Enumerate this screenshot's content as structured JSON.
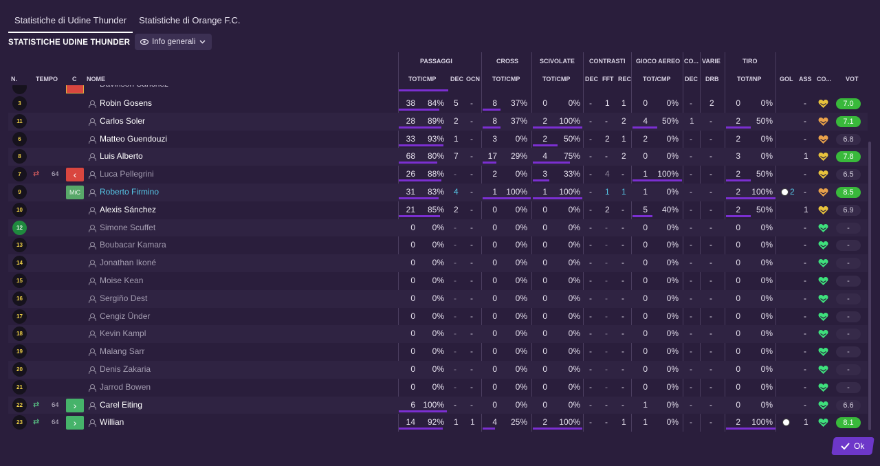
{
  "tabs": [
    {
      "label": "Statistiche di Udine Thunder"
    },
    {
      "label": "Statistiche di Orange F.C."
    }
  ],
  "team_title": "STATISTICHE UDINE THUNDER",
  "view_dropdown": "Info generali",
  "groups": {
    "passaggi": "PASSAGGI",
    "cross": "CROSS",
    "scivolate": "SCIVOLATE",
    "contrasti": "CONTRASTI",
    "gioco_aereo": "GIOCO AEREO",
    "co": "CO...",
    "varie": "VARIE",
    "tiro": "TIRO"
  },
  "columns": {
    "n": "N.",
    "tempo": "TEMPO",
    "c": "C",
    "nome": "NOME",
    "pass_tot": "TOT/CMP",
    "pass_dec": "DEC",
    "pass_ocn": "OCN",
    "cross_tot": "TOT/CMP",
    "sciv_tot": "TOT/CMP",
    "con_dec": "DEC",
    "con_fft": "FFT",
    "con_rec": "REC",
    "aereo_tot": "TOT/CMP",
    "co_dec": "DEC",
    "var_drb": "DRB",
    "tiro_tot": "TOT/INP",
    "gol": "GOL",
    "ass": "ASS",
    "co": "CO...",
    "vot": "VOT"
  },
  "partial_row": {
    "name": "Davinson Sánchez"
  },
  "players": [
    {
      "num": "3",
      "name": "Robin Gosens",
      "min": "",
      "pos": "",
      "pass_t": "38",
      "pass_p": "84%",
      "pass_fill": 0.84,
      "dec": "5",
      "ocn": "-",
      "cross_t": "8",
      "cross_p": "37%",
      "cross_fill": 0.37,
      "sciv_t": "0",
      "sciv_p": "0%",
      "sciv_fill": 0,
      "cdec": "-",
      "fft": "1",
      "rec": "1",
      "aer_t": "0",
      "aer_p": "0%",
      "aer_fill": 0,
      "codec": "-",
      "drb": "2",
      "tiro_t": "0",
      "tiro_p": "0%",
      "tiro_fill": 0,
      "gol": "",
      "ass": "-",
      "vot": "7.0",
      "vg": true,
      "heart": "#e8c23c"
    },
    {
      "num": "11",
      "name": "Carlos Soler",
      "min": "",
      "pos": "",
      "pass_t": "28",
      "pass_p": "89%",
      "pass_fill": 0.89,
      "dec": "2",
      "ocn": "-",
      "cross_t": "8",
      "cross_p": "37%",
      "cross_fill": 0.37,
      "sciv_t": "2",
      "sciv_p": "100%",
      "sciv_fill": 1,
      "cdec": "-",
      "fft": "-",
      "rec": "2",
      "aer_t": "4",
      "aer_p": "50%",
      "aer_fill": 0.5,
      "codec": "1",
      "drb": "-",
      "tiro_t": "2",
      "tiro_p": "50%",
      "tiro_fill": 0.5,
      "gol": "",
      "ass": "-",
      "vot": "7.1",
      "vg": true,
      "heart": "#e8a14a"
    },
    {
      "num": "6",
      "name": "Matteo Guendouzi",
      "min": "",
      "pos": "",
      "pass_t": "33",
      "pass_p": "93%",
      "pass_fill": 0.93,
      "dec": "1",
      "ocn": "-",
      "cross_t": "3",
      "cross_p": "0%",
      "cross_fill": 0,
      "sciv_t": "2",
      "sciv_p": "50%",
      "sciv_fill": 0.5,
      "cdec": "-",
      "fft": "2",
      "rec": "1",
      "aer_t": "2",
      "aer_p": "0%",
      "aer_fill": 0,
      "codec": "-",
      "drb": "-",
      "tiro_t": "2",
      "tiro_p": "0%",
      "tiro_fill": 0,
      "gol": "",
      "ass": "-",
      "vot": "6.8",
      "vg": false,
      "heart": "#e8a14a"
    },
    {
      "num": "8",
      "name": "Luis Alberto",
      "min": "",
      "pos": "",
      "pass_t": "68",
      "pass_p": "80%",
      "pass_fill": 0.8,
      "dec": "7",
      "ocn": "-",
      "cross_t": "17",
      "cross_p": "29%",
      "cross_fill": 0.29,
      "sciv_t": "4",
      "sciv_p": "75%",
      "sciv_fill": 0.75,
      "cdec": "-",
      "fft": "-",
      "rec": "2",
      "aer_t": "0",
      "aer_p": "0%",
      "aer_fill": 0,
      "codec": "-",
      "drb": "-",
      "tiro_t": "3",
      "tiro_p": "0%",
      "tiro_fill": 0,
      "gol": "",
      "ass": "1",
      "vot": "7.8",
      "vg": true,
      "heart": "#e8c23c"
    },
    {
      "num": "7",
      "name": "Luca Pellegrini",
      "min": "64",
      "pos": "out",
      "sub": "out",
      "dim": true,
      "pass_t": "26",
      "pass_p": "88%",
      "pass_fill": 0.88,
      "dec": "-",
      "ocn": "-",
      "cross_t": "2",
      "cross_p": "0%",
      "cross_fill": 0,
      "sciv_t": "3",
      "sciv_p": "33%",
      "sciv_fill": 0.33,
      "cdec": "-",
      "fft": "4",
      "rec": "-",
      "aer_t": "1",
      "aer_p": "100%",
      "aer_fill": 1,
      "codec": "-",
      "drb": "-",
      "tiro_t": "2",
      "tiro_p": "50%",
      "tiro_fill": 0.5,
      "gol": "",
      "ass": "-",
      "vot": "6.5",
      "vg": false,
      "heart": "#e8c23c"
    },
    {
      "num": "9",
      "name": "Roberto Firmino",
      "min": "",
      "pos": "MiC",
      "hl": true,
      "pass_t": "31",
      "pass_p": "83%",
      "pass_fill": 0.83,
      "dec": "4",
      "ocn": "-",
      "cross_t": "1",
      "cross_p": "100%",
      "cross_fill": 1,
      "sciv_t": "1",
      "sciv_p": "100%",
      "sciv_fill": 1,
      "cdec": "-",
      "fft": "1",
      "rec": "1",
      "aer_t": "1",
      "aer_p": "0%",
      "aer_fill": 0,
      "codec": "-",
      "drb": "-",
      "tiro_t": "2",
      "tiro_p": "100%",
      "tiro_fill": 1,
      "gol": "2",
      "ass": "-",
      "vot": "8.5",
      "vg": true,
      "heart": "#e8a14a"
    },
    {
      "num": "10",
      "name": "Alexis Sánchez",
      "min": "",
      "pos": "",
      "pass_t": "21",
      "pass_p": "85%",
      "pass_fill": 0.85,
      "dec": "2",
      "ocn": "-",
      "cross_t": "0",
      "cross_p": "0%",
      "cross_fill": 0,
      "sciv_t": "0",
      "sciv_p": "0%",
      "sciv_fill": 0,
      "cdec": "-",
      "fft": "2",
      "rec": "-",
      "aer_t": "5",
      "aer_p": "40%",
      "aer_fill": 0.4,
      "codec": "-",
      "drb": "-",
      "tiro_t": "2",
      "tiro_p": "50%",
      "tiro_fill": 0.5,
      "gol": "",
      "ass": "1",
      "vot": "6.9",
      "vg": false,
      "heart": "#e8c23c"
    },
    {
      "num": "12",
      "gk": true,
      "name": "Simone Scuffet",
      "dim": true,
      "zero": true
    },
    {
      "num": "13",
      "name": "Boubacar Kamara",
      "dim": true,
      "zero": true
    },
    {
      "num": "14",
      "name": "Jonathan Ikoné",
      "dim": true,
      "zero": true
    },
    {
      "num": "15",
      "name": "Moise Kean",
      "dim": true,
      "zero": true
    },
    {
      "num": "16",
      "name": "Sergiño Dest",
      "dim": true,
      "zero": true
    },
    {
      "num": "17",
      "name": "Cengiz Ünder",
      "dim": true,
      "zero": true
    },
    {
      "num": "18",
      "name": "Kevin Kampl",
      "dim": true,
      "zero": true
    },
    {
      "num": "19",
      "name": "Malang Sarr",
      "dim": true,
      "zero": true
    },
    {
      "num": "20",
      "name": "Denis Zakaria",
      "dim": true,
      "zero": true
    },
    {
      "num": "21",
      "name": "Jarrod Bowen",
      "dim": true,
      "zero": true
    },
    {
      "num": "22",
      "name": "Carel Eiting",
      "min": "64",
      "pos": "in",
      "sub": "in",
      "pass_t": "6",
      "pass_p": "100%",
      "pass_fill": 1,
      "dec": "-",
      "ocn": "-",
      "cross_t": "0",
      "cross_p": "0%",
      "cross_fill": 0,
      "sciv_t": "0",
      "sciv_p": "0%",
      "sciv_fill": 0,
      "cdec": "-",
      "fft": "-",
      "rec": "-",
      "aer_t": "1",
      "aer_p": "0%",
      "aer_fill": 0,
      "codec": "-",
      "drb": "-",
      "tiro_t": "0",
      "tiro_p": "0%",
      "tiro_fill": 0,
      "gol": "",
      "ass": "-",
      "vot": "6.6",
      "vg": false,
      "heart": "#3ee07c"
    },
    {
      "num": "23",
      "name": "Willian",
      "min": "64",
      "pos": "in",
      "sub": "in",
      "pass_t": "14",
      "pass_p": "92%",
      "pass_fill": 0.92,
      "dec": "1",
      "ocn": "1",
      "cross_t": "4",
      "cross_p": "25%",
      "cross_fill": 0.25,
      "sciv_t": "2",
      "sciv_p": "100%",
      "sciv_fill": 1,
      "cdec": "-",
      "fft": "-",
      "rec": "1",
      "aer_t": "1",
      "aer_p": "0%",
      "aer_fill": 0,
      "codec": "-",
      "drb": "-",
      "tiro_t": "2",
      "tiro_p": "100%",
      "tiro_fill": 1,
      "gol": "ball",
      "ass": "1",
      "vot": "8.1",
      "vg": true,
      "heart": "#3ee07c"
    }
  ],
  "ok_label": "Ok",
  "colors": {
    "bg": "#2a1e3c",
    "bar": "#7b2fd1",
    "rating_green": "#39b93b",
    "highlight": "#56c6e6",
    "ok": "#6d37c9"
  }
}
